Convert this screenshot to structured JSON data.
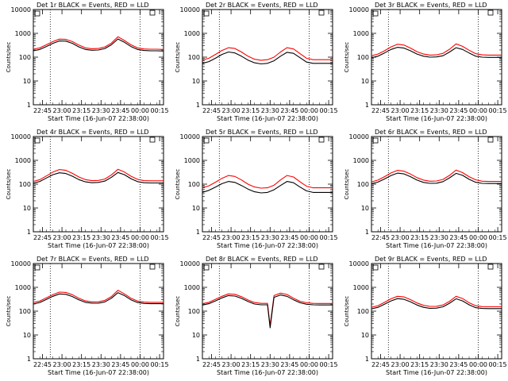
{
  "figure": {
    "xlabel": "Start Time (16-Jun-07 22:38:00)",
    "ylabel": "Counts/sec",
    "x_tick_labels": [
      "22:45",
      "23:00",
      "23:15",
      "23:30",
      "23:45",
      "00:00",
      "00:15"
    ],
    "y_tick_labels": [
      "1",
      "10",
      "100",
      "1000",
      "10000"
    ],
    "colors": {
      "events": "#000000",
      "lld": "#ff0000",
      "background": "#ffffff",
      "frame": "#000000"
    }
  },
  "chart_data": [
    {
      "type": "line",
      "title": "Det 1r BLACK = Events, RED = LLD",
      "xlabel": "Start Time (16-Jun-07 22:38:00)",
      "ylabel": "Counts/sec",
      "y_scale": "log",
      "ylim": [
        1,
        10000
      ],
      "x_unit": "minutes after 22:38:00",
      "xlim": [
        0,
        100
      ],
      "x_ticks_minutes": [
        7,
        22,
        37,
        52,
        67,
        82,
        97
      ],
      "vertical_dotted_lines_minutes": [
        13,
        82
      ],
      "x": [
        0,
        5,
        10,
        15,
        20,
        25,
        30,
        35,
        40,
        45,
        50,
        55,
        60,
        65,
        70,
        75,
        80,
        85,
        90,
        95,
        100
      ],
      "series": [
        {
          "name": "Events",
          "color": "#000000",
          "values": [
            185,
            210,
            280,
            380,
            480,
            470,
            380,
            270,
            210,
            195,
            200,
            230,
            330,
            580,
            420,
            280,
            210,
            190,
            185,
            185,
            180
          ]
        },
        {
          "name": "LLD",
          "color": "#ff0000",
          "values": [
            215,
            245,
            330,
            450,
            570,
            560,
            450,
            320,
            245,
            225,
            230,
            270,
            390,
            720,
            500,
            330,
            245,
            220,
            215,
            215,
            210
          ]
        }
      ]
    },
    {
      "type": "line",
      "title": "Det 2r BLACK = Events, RED = LLD",
      "xlabel": "Start Time (16-Jun-07 22:38:00)",
      "ylabel": "Counts/sec",
      "y_scale": "log",
      "ylim": [
        1,
        10000
      ],
      "x_unit": "minutes after 22:38:00",
      "xlim": [
        0,
        100
      ],
      "x_ticks_minutes": [
        7,
        22,
        37,
        52,
        67,
        82,
        97
      ],
      "vertical_dotted_lines_minutes": [
        13,
        82
      ],
      "x": [
        0,
        5,
        10,
        15,
        20,
        25,
        30,
        35,
        40,
        45,
        50,
        55,
        60,
        65,
        70,
        75,
        80,
        85,
        90,
        95,
        100
      ],
      "series": [
        {
          "name": "Events",
          "color": "#000000",
          "values": [
            55,
            65,
            90,
            130,
            165,
            150,
            110,
            75,
            58,
            52,
            55,
            70,
            110,
            160,
            145,
            95,
            62,
            55,
            55,
            55,
            55
          ]
        },
        {
          "name": "LLD",
          "color": "#ff0000",
          "values": [
            75,
            90,
            130,
            190,
            250,
            230,
            165,
            110,
            82,
            74,
            78,
            100,
            165,
            250,
            220,
            140,
            90,
            78,
            78,
            78,
            78
          ]
        }
      ]
    },
    {
      "type": "line",
      "title": "Det 3r BLACK = Events, RED = LLD",
      "xlabel": "Start Time (16-Jun-07 22:38:00)",
      "ylabel": "Counts/sec",
      "y_scale": "log",
      "ylim": [
        1,
        10000
      ],
      "x_unit": "minutes after 22:38:00",
      "xlim": [
        0,
        100
      ],
      "x_ticks_minutes": [
        7,
        22,
        37,
        52,
        67,
        82,
        97
      ],
      "vertical_dotted_lines_minutes": [
        13,
        82
      ],
      "x": [
        0,
        5,
        10,
        15,
        20,
        25,
        30,
        35,
        40,
        45,
        50,
        55,
        60,
        65,
        70,
        75,
        80,
        85,
        90,
        95,
        100
      ],
      "series": [
        {
          "name": "Events",
          "color": "#000000",
          "values": [
            95,
            110,
            150,
            210,
            260,
            240,
            185,
            135,
            110,
            100,
            102,
            115,
            165,
            250,
            210,
            150,
            110,
            100,
            98,
            98,
            98
          ]
        },
        {
          "name": "LLD",
          "color": "#ff0000",
          "values": [
            115,
            135,
            185,
            270,
            350,
            320,
            240,
            170,
            135,
            122,
            125,
            145,
            215,
            360,
            285,
            195,
            140,
            125,
            122,
            122,
            122
          ]
        }
      ]
    },
    {
      "type": "line",
      "title": "Det 4r BLACK = Events, RED = LLD",
      "xlabel": "Start Time (16-Jun-07 22:38:00)",
      "ylabel": "Counts/sec",
      "y_scale": "log",
      "ylim": [
        1,
        10000
      ],
      "x_unit": "minutes after 22:38:00",
      "xlim": [
        0,
        100
      ],
      "x_ticks_minutes": [
        7,
        22,
        37,
        52,
        67,
        82,
        97
      ],
      "vertical_dotted_lines_minutes": [
        13,
        82
      ],
      "x": [
        0,
        5,
        10,
        15,
        20,
        25,
        30,
        35,
        40,
        45,
        50,
        55,
        60,
        65,
        70,
        75,
        80,
        85,
        90,
        95,
        100
      ],
      "series": [
        {
          "name": "Events",
          "color": "#000000",
          "values": [
            110,
            130,
            180,
            250,
            300,
            280,
            215,
            155,
            125,
            115,
            118,
            135,
            195,
            310,
            250,
            170,
            128,
            115,
            112,
            112,
            112
          ]
        },
        {
          "name": "LLD",
          "color": "#ff0000",
          "values": [
            130,
            155,
            220,
            320,
            410,
            380,
            285,
            200,
            155,
            140,
            143,
            165,
            245,
            420,
            320,
            215,
            160,
            140,
            138,
            138,
            138
          ]
        }
      ]
    },
    {
      "type": "line",
      "title": "Det 5r BLACK = Events, RED = LLD",
      "xlabel": "Start Time (16-Jun-07 22:38:00)",
      "ylabel": "Counts/sec",
      "y_scale": "log",
      "ylim": [
        1,
        10000
      ],
      "x_unit": "minutes after 22:38:00",
      "xlim": [
        0,
        100
      ],
      "x_ticks_minutes": [
        7,
        22,
        37,
        52,
        67,
        82,
        97
      ],
      "vertical_dotted_lines_minutes": [
        13,
        82
      ],
      "x": [
        0,
        5,
        10,
        15,
        20,
        25,
        30,
        35,
        40,
        45,
        50,
        55,
        60,
        65,
        70,
        75,
        80,
        85,
        90,
        95,
        100
      ],
      "series": [
        {
          "name": "Events",
          "color": "#000000",
          "values": [
            45,
            55,
            75,
            105,
            130,
            118,
            88,
            62,
            48,
            43,
            45,
            58,
            88,
            130,
            115,
            75,
            52,
            45,
            45,
            45,
            45
          ]
        },
        {
          "name": "LLD",
          "color": "#ff0000",
          "values": [
            70,
            85,
            120,
            175,
            230,
            210,
            150,
            100,
            76,
            68,
            70,
            90,
            150,
            230,
            200,
            125,
            82,
            70,
            70,
            70,
            70
          ]
        }
      ]
    },
    {
      "type": "line",
      "title": "Det 6r BLACK = Events, RED = LLD",
      "xlabel": "Start Time (16-Jun-07 22:38:00)",
      "ylabel": "Counts/sec",
      "y_scale": "log",
      "ylim": [
        1,
        10000
      ],
      "x_unit": "minutes after 22:38:00",
      "xlim": [
        0,
        100
      ],
      "x_ticks_minutes": [
        7,
        22,
        37,
        52,
        67,
        82,
        97
      ],
      "vertical_dotted_lines_minutes": [
        13,
        82
      ],
      "x": [
        0,
        5,
        10,
        15,
        20,
        25,
        30,
        35,
        40,
        45,
        50,
        55,
        60,
        65,
        70,
        75,
        80,
        85,
        90,
        95,
        100
      ],
      "series": [
        {
          "name": "Events",
          "color": "#000000",
          "values": [
            105,
            122,
            165,
            230,
            290,
            270,
            205,
            148,
            118,
            108,
            110,
            128,
            185,
            285,
            235,
            160,
            120,
            108,
            106,
            106,
            106
          ]
        },
        {
          "name": "LLD",
          "color": "#ff0000",
          "values": [
            125,
            148,
            205,
            295,
            380,
            350,
            265,
            188,
            148,
            133,
            136,
            158,
            235,
            390,
            305,
            205,
            152,
            133,
            130,
            130,
            130
          ]
        }
      ]
    },
    {
      "type": "line",
      "title": "Det 7r BLACK = Events, RED = LLD",
      "xlabel": "Start Time (16-Jun-07 22:38:00)",
      "ylabel": "Counts/sec",
      "y_scale": "log",
      "ylim": [
        1,
        10000
      ],
      "x_unit": "minutes after 22:38:00",
      "xlim": [
        0,
        100
      ],
      "x_ticks_minutes": [
        7,
        22,
        37,
        52,
        67,
        82,
        97
      ],
      "vertical_dotted_lines_minutes": [
        13,
        82
      ],
      "x": [
        0,
        5,
        10,
        15,
        20,
        25,
        30,
        35,
        40,
        45,
        50,
        55,
        60,
        65,
        70,
        75,
        80,
        85,
        90,
        95,
        100
      ],
      "series": [
        {
          "name": "Events",
          "color": "#000000",
          "values": [
            200,
            230,
            310,
            420,
            530,
            510,
            410,
            300,
            235,
            215,
            215,
            245,
            350,
            600,
            450,
            300,
            230,
            210,
            205,
            205,
            205
          ]
        },
        {
          "name": "LLD",
          "color": "#ff0000",
          "values": [
            230,
            265,
            360,
            490,
            630,
            610,
            490,
            350,
            270,
            245,
            248,
            285,
            410,
            750,
            530,
            350,
            265,
            240,
            235,
            235,
            235
          ]
        }
      ]
    },
    {
      "type": "line",
      "title": "Det 8r BLACK = Events, RED = LLD",
      "xlabel": "Start Time (16-Jun-07 22:38:00)",
      "ylabel": "Counts/sec",
      "y_scale": "log",
      "ylim": [
        1,
        10000
      ],
      "x_unit": "minutes after 22:38:00",
      "xlim": [
        0,
        100
      ],
      "x_ticks_minutes": [
        7,
        22,
        37,
        52,
        67,
        82,
        97
      ],
      "vertical_dotted_lines_minutes": [
        13,
        82
      ],
      "x": [
        0,
        5,
        10,
        15,
        20,
        25,
        30,
        35,
        40,
        45,
        50,
        52,
        55,
        60,
        65,
        70,
        75,
        80,
        85,
        90,
        95,
        100
      ],
      "series": [
        {
          "name": "Events",
          "color": "#000000",
          "values": [
            180,
            205,
            270,
            360,
            450,
            430,
            345,
            255,
            200,
            185,
            185,
            20,
            380,
            480,
            420,
            300,
            225,
            195,
            185,
            182,
            182,
            182
          ]
        },
        {
          "name": "LLD",
          "color": "#ff0000",
          "values": [
            205,
            235,
            315,
            420,
            530,
            510,
            405,
            295,
            230,
            212,
            212,
            25,
            450,
            570,
            500,
            350,
            260,
            225,
            212,
            210,
            210,
            210
          ]
        }
      ]
    },
    {
      "type": "line",
      "title": "Det 9r BLACK = Events, RED = LLD",
      "xlabel": "Start Time (16-Jun-07 22:38:00)",
      "ylabel": "Counts/sec",
      "y_scale": "log",
      "ylim": [
        1,
        10000
      ],
      "x_unit": "minutes after 22:38:00",
      "xlim": [
        0,
        100
      ],
      "x_ticks_minutes": [
        7,
        22,
        37,
        52,
        67,
        82,
        97
      ],
      "vertical_dotted_lines_minutes": [
        13,
        82
      ],
      "x": [
        0,
        5,
        10,
        15,
        20,
        25,
        30,
        35,
        40,
        45,
        50,
        55,
        60,
        65,
        70,
        75,
        80,
        85,
        90,
        95,
        100
      ],
      "series": [
        {
          "name": "Events",
          "color": "#000000",
          "values": [
            125,
            145,
            195,
            270,
            335,
            315,
            245,
            180,
            145,
            132,
            134,
            152,
            215,
            330,
            270,
            185,
            140,
            130,
            128,
            128,
            128
          ]
        },
        {
          "name": "LLD",
          "color": "#ff0000",
          "values": [
            145,
            170,
            235,
            330,
            420,
            395,
            305,
            220,
            175,
            158,
            160,
            182,
            260,
            420,
            340,
            225,
            170,
            155,
            152,
            152,
            152
          ]
        }
      ]
    }
  ]
}
